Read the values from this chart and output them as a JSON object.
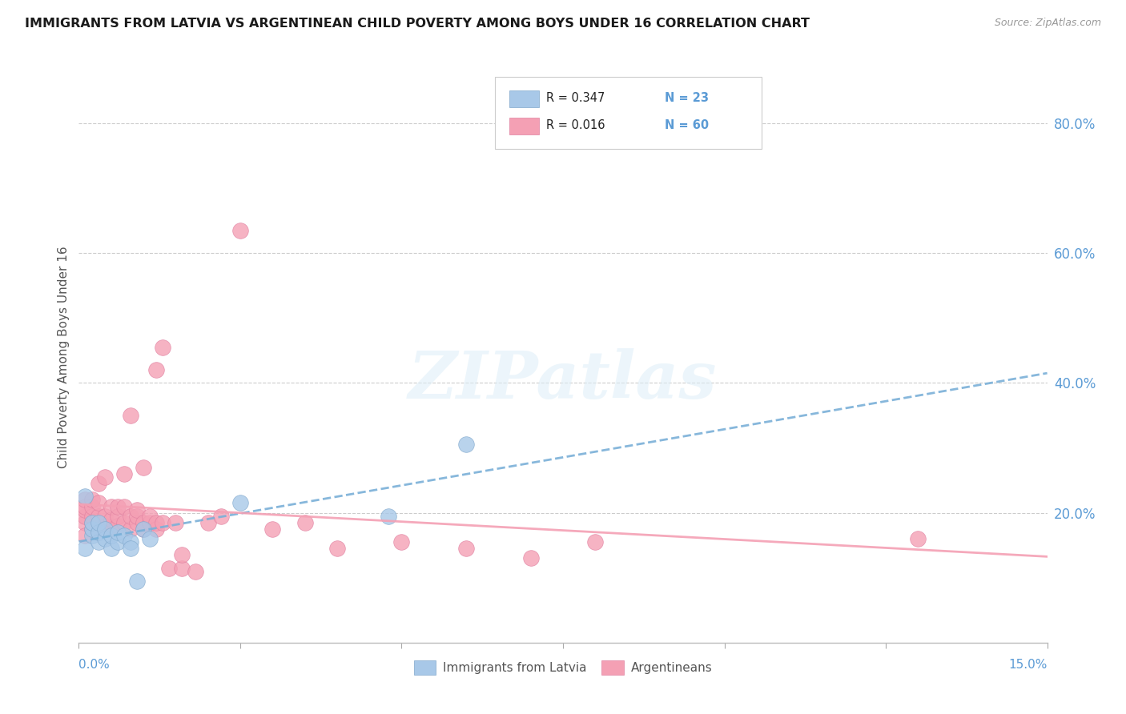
{
  "title": "IMMIGRANTS FROM LATVIA VS ARGENTINEAN CHILD POVERTY AMONG BOYS UNDER 16 CORRELATION CHART",
  "source": "Source: ZipAtlas.com",
  "ylabel": "Child Poverty Among Boys Under 16",
  "right_yticks": [
    "80.0%",
    "60.0%",
    "40.0%",
    "20.0%"
  ],
  "right_ytick_vals": [
    0.8,
    0.6,
    0.4,
    0.2
  ],
  "xlim": [
    0.0,
    0.15
  ],
  "ylim": [
    0.0,
    0.88
  ],
  "color_latvia": "#a8c8e8",
  "color_arg": "#f4a0b4",
  "color_latvia_line": "#7ab0d8",
  "color_arg_line": "#f4a0b4",
  "color_title": "#1a1a1a",
  "color_right_axis": "#5b9bd5",
  "watermark_color": "#ddeef8",
  "latvia_x": [
    0.001,
    0.001,
    0.002,
    0.002,
    0.002,
    0.003,
    0.003,
    0.003,
    0.004,
    0.004,
    0.005,
    0.005,
    0.006,
    0.006,
    0.007,
    0.008,
    0.008,
    0.009,
    0.01,
    0.011,
    0.025,
    0.048,
    0.06
  ],
  "latvia_y": [
    0.145,
    0.225,
    0.165,
    0.175,
    0.185,
    0.155,
    0.17,
    0.185,
    0.16,
    0.175,
    0.145,
    0.165,
    0.155,
    0.17,
    0.165,
    0.155,
    0.145,
    0.095,
    0.175,
    0.16,
    0.215,
    0.195,
    0.305
  ],
  "arg_x": [
    0.001,
    0.001,
    0.001,
    0.001,
    0.001,
    0.001,
    0.002,
    0.002,
    0.002,
    0.002,
    0.002,
    0.003,
    0.003,
    0.003,
    0.003,
    0.004,
    0.004,
    0.004,
    0.005,
    0.005,
    0.005,
    0.006,
    0.006,
    0.006,
    0.007,
    0.007,
    0.007,
    0.008,
    0.008,
    0.008,
    0.009,
    0.009,
    0.009,
    0.01,
    0.01,
    0.01,
    0.011,
    0.011,
    0.012,
    0.012,
    0.012,
    0.013,
    0.013,
    0.014,
    0.015,
    0.016,
    0.016,
    0.018,
    0.02,
    0.022,
    0.025,
    0.03,
    0.035,
    0.04,
    0.05,
    0.06,
    0.07,
    0.08,
    0.13
  ],
  "arg_y": [
    0.185,
    0.195,
    0.205,
    0.21,
    0.22,
    0.165,
    0.175,
    0.185,
    0.195,
    0.21,
    0.22,
    0.175,
    0.195,
    0.215,
    0.245,
    0.18,
    0.195,
    0.255,
    0.175,
    0.19,
    0.21,
    0.18,
    0.195,
    0.21,
    0.185,
    0.21,
    0.26,
    0.175,
    0.195,
    0.35,
    0.185,
    0.195,
    0.205,
    0.175,
    0.185,
    0.27,
    0.185,
    0.195,
    0.175,
    0.185,
    0.42,
    0.185,
    0.455,
    0.115,
    0.185,
    0.115,
    0.135,
    0.11,
    0.185,
    0.195,
    0.635,
    0.175,
    0.185,
    0.145,
    0.155,
    0.145,
    0.13,
    0.155,
    0.16
  ]
}
